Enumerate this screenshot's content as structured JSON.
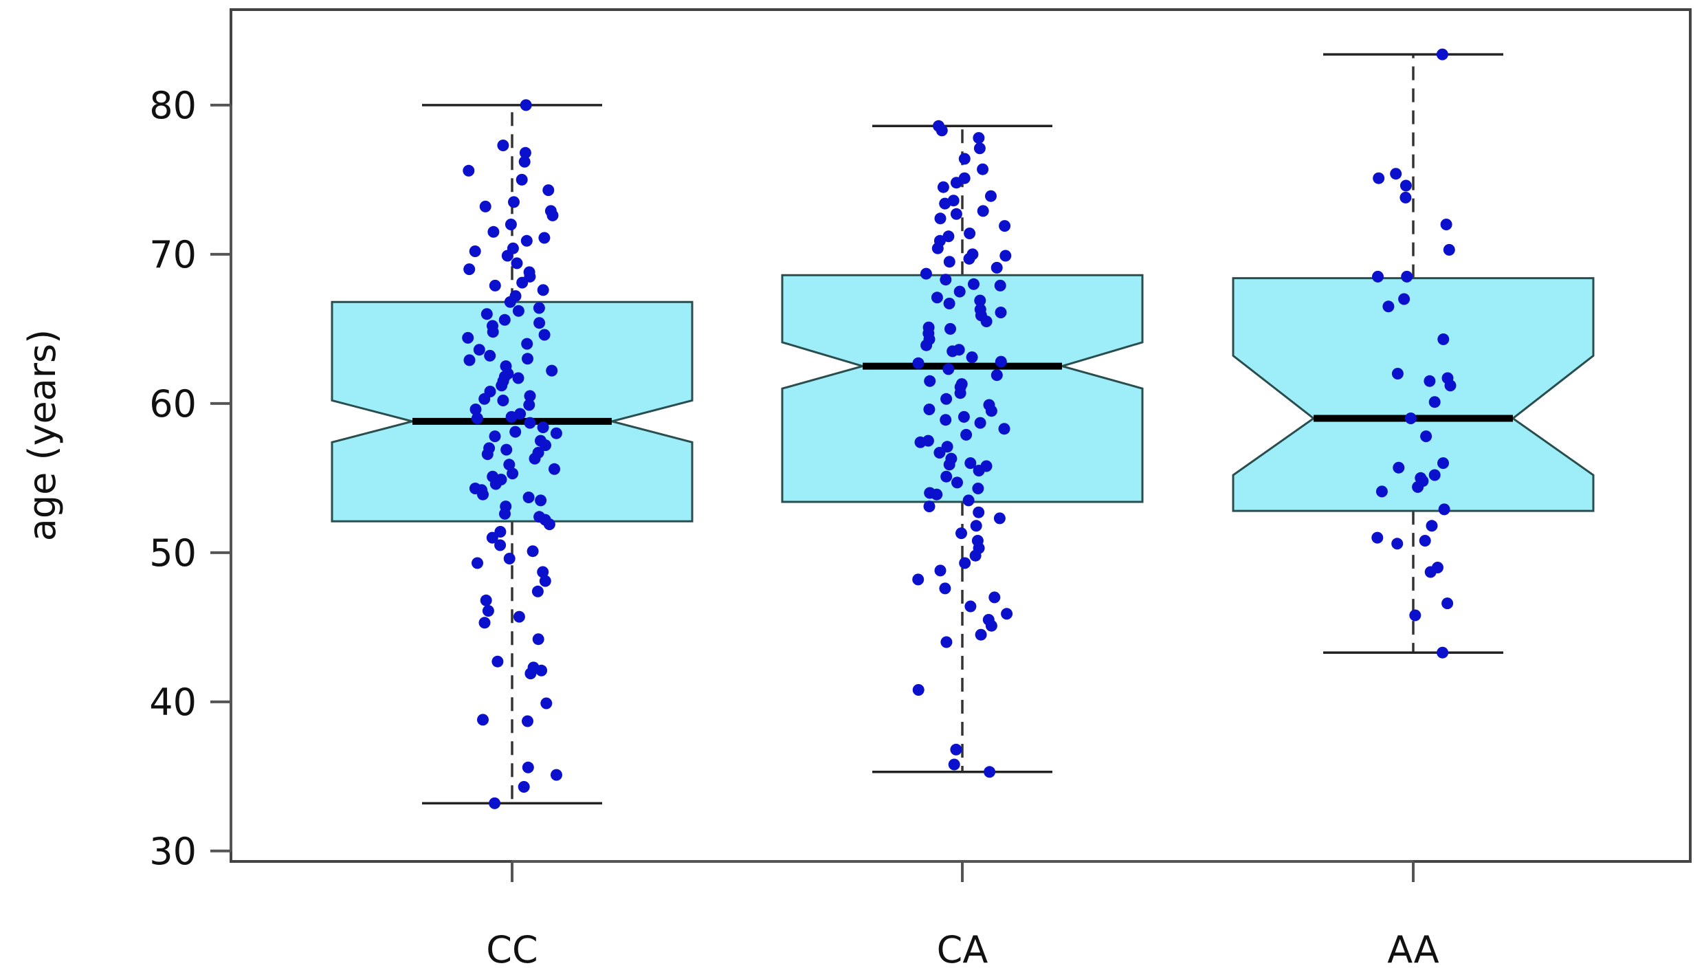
{
  "chart_data": {
    "type": "boxplot",
    "notched": true,
    "title": "",
    "xlabel": "",
    "ylabel": "age (years)",
    "ylim": [
      29.3,
      86.4
    ],
    "yticks": [
      30,
      40,
      50,
      60,
      70,
      80
    ],
    "categories": [
      "CC",
      "CA",
      "AA"
    ],
    "colors": {
      "box_fill": "#9eeefa",
      "box_stroke": "#2a4d4d",
      "point": "#0a10cc",
      "whisker": "#333333",
      "axis": "#555555"
    },
    "boxes": [
      {
        "name": "CC",
        "whisker_low": 33.2,
        "q1": 52.1,
        "median": 58.8,
        "q3": 66.8,
        "whisker_high": 80.0,
        "notch_low": 57.4,
        "notch_high": 60.2
      },
      {
        "name": "CA",
        "whisker_low": 35.3,
        "q1": 53.4,
        "median": 62.5,
        "q3": 68.6,
        "whisker_high": 78.6,
        "notch_low": 61.0,
        "notch_high": 64.1
      },
      {
        "name": "AA",
        "whisker_low": 43.3,
        "q1": 52.8,
        "median": 59.0,
        "q3": 68.4,
        "whisker_high": 83.4,
        "notch_low": 55.2,
        "notch_high": 63.2
      }
    ],
    "points": {
      "CC": [
        80.0,
        33.2,
        34.3,
        35.1,
        35.6,
        38.7,
        38.8,
        39.9,
        41.9,
        42.1,
        42.3,
        42.7,
        44.2,
        45.3,
        45.7,
        46.1,
        46.8,
        47.4,
        48.1,
        48.7,
        49.3,
        49.6,
        50.1,
        50.5,
        51.0,
        51.4,
        51.9,
        52.2,
        52.6,
        53.1,
        53.5,
        53.9,
        54.2,
        54.6,
        54.9,
        55.3,
        55.6,
        55.9,
        56.3,
        56.6,
        56.9,
        57.2,
        57.5,
        57.8,
        58.1,
        58.4,
        58.7,
        59.0,
        59.3,
        59.6,
        59.9,
        60.2,
        60.5,
        60.8,
        61.2,
        61.5,
        61.8,
        62.2,
        62.5,
        62.9,
        63.2,
        63.6,
        64.0,
        64.4,
        64.8,
        65.2,
        65.6,
        66.0,
        66.4,
        66.8,
        67.2,
        67.6,
        68.1,
        68.5,
        69.0,
        69.4,
        69.9,
        70.4,
        70.9,
        71.5,
        72.0,
        72.6,
        73.2,
        73.5,
        74.3,
        75.0,
        75.6,
        76.2,
        76.8,
        77.3,
        52.4,
        53.7,
        55.1,
        56.7,
        58.0,
        59.1,
        60.3,
        61.7,
        63.0,
        64.6,
        66.2,
        68.8,
        70.2,
        72.9,
        54.3,
        57.0,
        62.0,
        65.4,
        67.9,
        71.1
      ],
      "CA": [
        78.6,
        35.3,
        35.8,
        36.8,
        40.8,
        44.0,
        44.5,
        45.1,
        45.5,
        45.9,
        46.4,
        47.0,
        47.6,
        48.2,
        48.8,
        49.3,
        49.8,
        50.3,
        50.8,
        51.3,
        51.8,
        52.3,
        52.7,
        53.1,
        53.5,
        53.9,
        54.3,
        54.7,
        55.1,
        55.5,
        55.9,
        56.3,
        56.7,
        57.1,
        57.5,
        57.9,
        58.3,
        58.7,
        59.1,
        59.5,
        59.9,
        60.3,
        60.7,
        61.1,
        61.5,
        61.9,
        62.3,
        62.7,
        63.1,
        63.5,
        63.9,
        64.3,
        64.7,
        65.1,
        65.5,
        65.9,
        66.3,
        66.7,
        67.1,
        67.5,
        67.9,
        68.3,
        68.7,
        69.1,
        69.5,
        69.9,
        70.4,
        70.9,
        71.4,
        71.9,
        72.4,
        72.9,
        73.4,
        73.9,
        74.5,
        75.1,
        75.7,
        76.4,
        77.1,
        77.8,
        78.3,
        54.0,
        55.8,
        57.4,
        59.6,
        61.3,
        63.6,
        65.0,
        66.9,
        68.0,
        69.7,
        71.2,
        72.7,
        74.8,
        56.0,
        58.9,
        62.8,
        66.1,
        70.0,
        73.6
      ],
      "AA": [
        83.4,
        75.4,
        75.1,
        74.6,
        73.8,
        72.0,
        70.3,
        68.5,
        68.5,
        67.0,
        66.5,
        64.3,
        62.0,
        61.7,
        61.5,
        61.2,
        60.1,
        59.0,
        57.8,
        56.0,
        55.7,
        55.2,
        55.0,
        54.8,
        54.4,
        54.1,
        52.9,
        51.8,
        51.0,
        50.8,
        50.6,
        49.0,
        48.7,
        46.6,
        45.8,
        43.3
      ]
    }
  }
}
